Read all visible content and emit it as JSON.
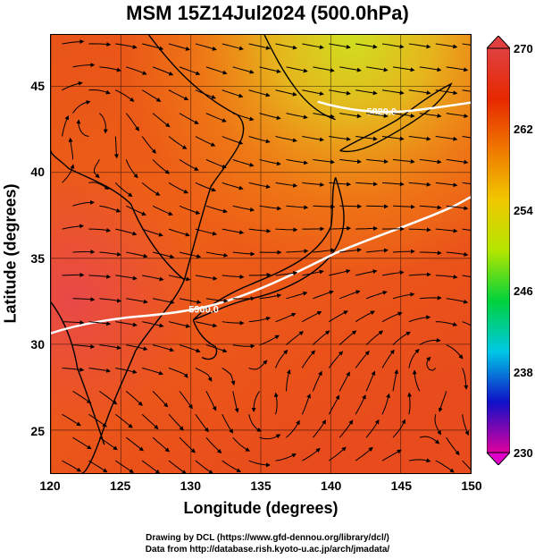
{
  "title": "MSM 15Z14Jul2024 (500.0hPa)",
  "x_axis": {
    "label": "Longitude (degrees)",
    "range": [
      120,
      150
    ],
    "ticks": [
      "120",
      "125",
      "130",
      "135",
      "140",
      "145",
      "150"
    ]
  },
  "y_axis": {
    "label": "Latitude  (degrees)",
    "range": [
      22.5,
      48
    ],
    "ticks": [
      "25",
      "30",
      "35",
      "40",
      "45"
    ]
  },
  "colorbar": {
    "min": 230,
    "max": 270,
    "labels": [
      "270",
      "262",
      "254",
      "246",
      "238",
      "230"
    ],
    "colors": [
      "#e0009f",
      "#1010c8",
      "#00c8e6",
      "#00d23c",
      "#b4e600",
      "#f0c800",
      "#f07800",
      "#e62800",
      "#e04040"
    ]
  },
  "contours": [
    {
      "label": "5900.0",
      "level": 5900
    },
    {
      "label": "5820.0",
      "level": 5820
    }
  ],
  "colors": {
    "field_warm": "#f05a14",
    "field_mid": "#f08c14",
    "field_cool": "#d8c81e",
    "land_outline": "#000000",
    "contour": "#ffffff",
    "grid": "#000000"
  },
  "credits": {
    "line1": "Drawing by DCL (https://www.gfd-dennou.org/library/dcl/)",
    "line2": "Data from http://database.rish.kyoto-u.ac.jp/arch/jmadata/"
  }
}
